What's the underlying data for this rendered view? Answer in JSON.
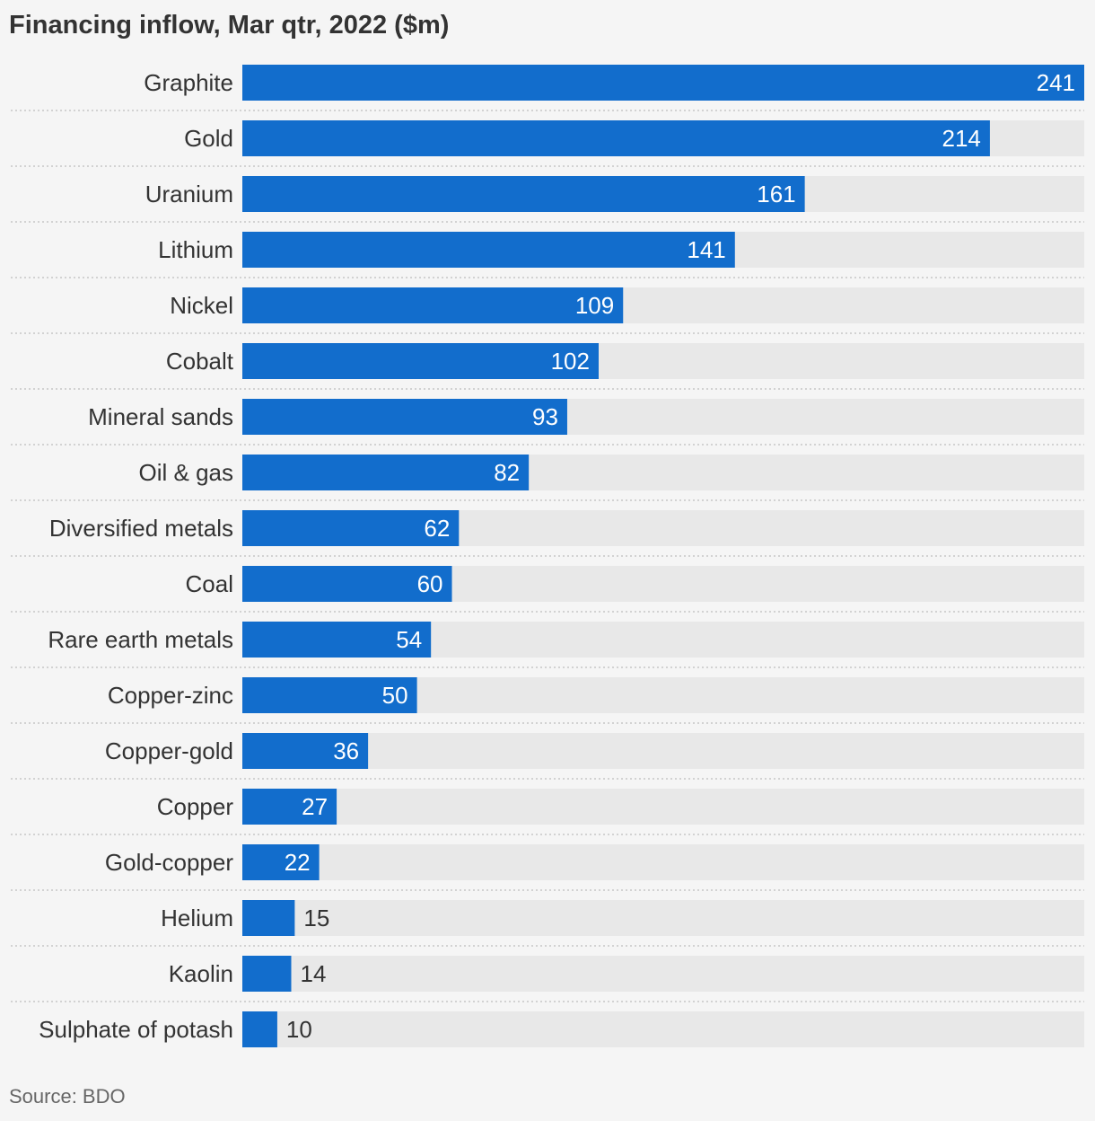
{
  "chart_data": {
    "type": "bar",
    "orientation": "horizontal",
    "title": "Financing inflow, Mar qtr, 2022 ($m)",
    "source": "Source: BDO",
    "categories": [
      "Graphite",
      "Gold",
      "Uranium",
      "Lithium",
      "Nickel",
      "Cobalt",
      "Mineral sands",
      "Oil & gas",
      "Diversified metals",
      "Coal",
      "Rare earth metals",
      "Copper-zinc",
      "Copper-gold",
      "Copper",
      "Gold-copper",
      "Helium",
      "Kaolin",
      "Sulphate of potash"
    ],
    "values": [
      241,
      214,
      161,
      141,
      109,
      102,
      93,
      82,
      62,
      60,
      54,
      50,
      36,
      27,
      22,
      15,
      14,
      10
    ],
    "xlim": [
      0,
      241
    ],
    "grid": false,
    "legend": "none",
    "colors": {
      "bar": "#126dcc",
      "track": "#e8e8e8",
      "label": "#333333",
      "value_inside": "#ffffff",
      "value_outside": "#333333",
      "separator": "#c6c6c6"
    }
  }
}
